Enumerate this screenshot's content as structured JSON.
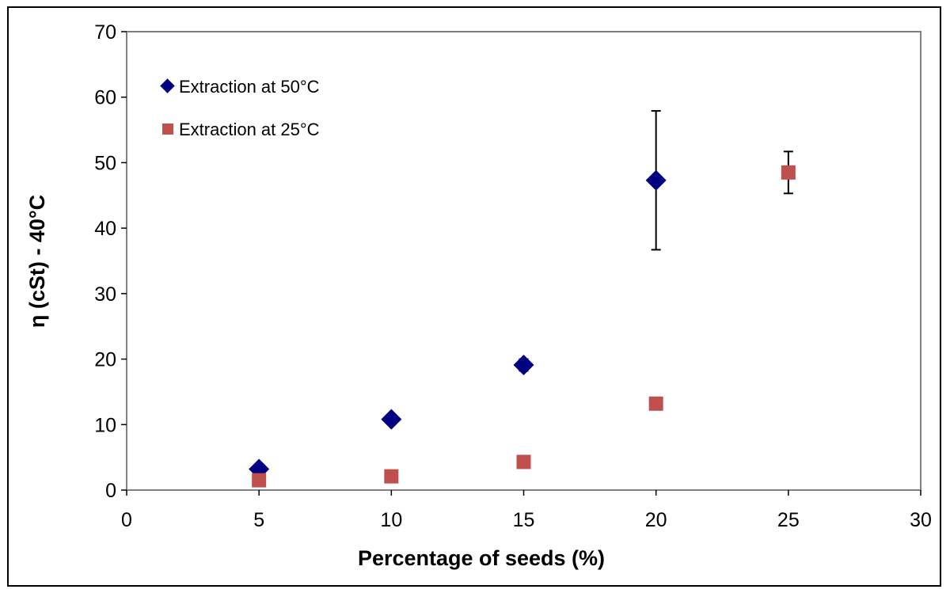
{
  "chart_data": {
    "type": "scatter",
    "title": "",
    "xlabel": "Percentage of seeds (%)",
    "ylabel": "η (cSt) - 40°C",
    "xlim": [
      0,
      30
    ],
    "ylim": [
      0,
      70
    ],
    "xticks": [
      0,
      5,
      10,
      15,
      20,
      25,
      30
    ],
    "yticks": [
      0,
      10,
      20,
      30,
      40,
      50,
      60,
      70
    ],
    "grid": false,
    "legend_position": "top-left",
    "series": [
      {
        "name": "Extraction at 50°C",
        "marker": "diamond",
        "color": "#000080",
        "points": [
          {
            "x": 5,
            "y": 3.2
          },
          {
            "x": 10,
            "y": 10.8
          },
          {
            "x": 15,
            "y": 19.1,
            "err": 0.9
          },
          {
            "x": 20,
            "y": 47.3,
            "err": 10.6
          }
        ]
      },
      {
        "name": "Extraction at 25°C",
        "marker": "square",
        "color": "#c0504d",
        "points": [
          {
            "x": 5,
            "y": 1.5
          },
          {
            "x": 10,
            "y": 2.1
          },
          {
            "x": 15,
            "y": 4.3
          },
          {
            "x": 20,
            "y": 13.2
          },
          {
            "x": 25,
            "y": 48.5,
            "err": 3.2
          }
        ]
      }
    ]
  }
}
